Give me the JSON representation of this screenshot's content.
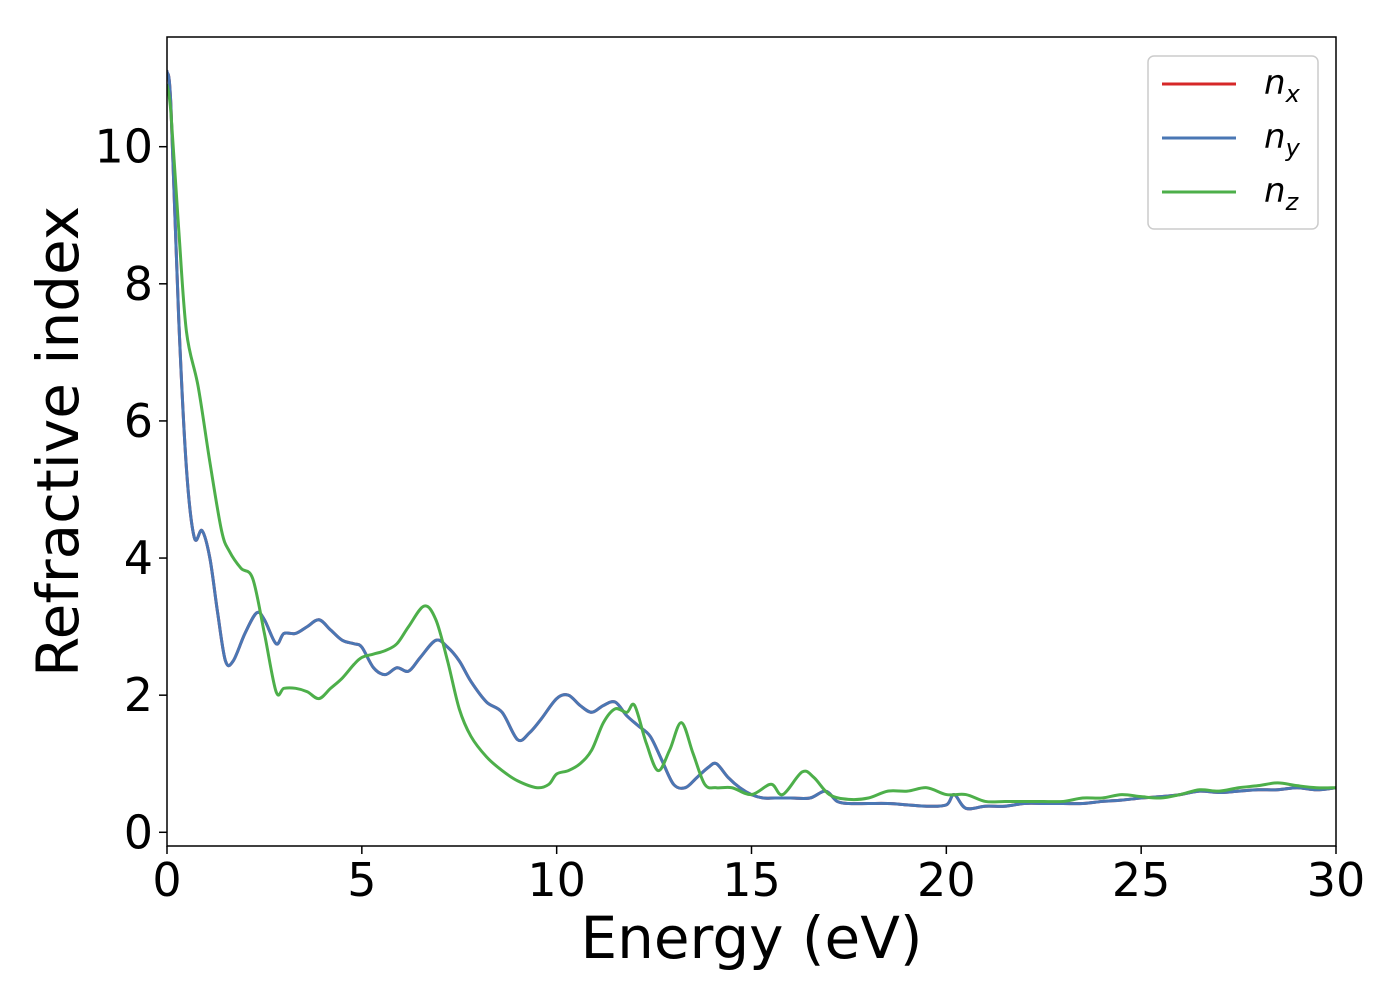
{
  "chart_data": {
    "type": "line",
    "xlabel": "Energy (eV)",
    "ylabel": "Refractive index",
    "xlim": [
      0,
      30
    ],
    "ylim": [
      -0.2,
      11.6
    ],
    "xticks": [
      0,
      5,
      10,
      15,
      20,
      25,
      30
    ],
    "yticks": [
      0,
      2,
      4,
      6,
      8,
      10
    ],
    "grid": false,
    "legend_position": "top-right",
    "series": [
      {
        "name": "n_x",
        "legend_base": "n",
        "legend_sub": "x",
        "color": "#d62728",
        "x": [
          0,
          0.1,
          0.3,
          0.5,
          0.7,
          0.9,
          1.1,
          1.3,
          1.5,
          1.7,
          2.0,
          2.3,
          2.5,
          2.8,
          3.0,
          3.3,
          3.6,
          3.9,
          4.2,
          4.5,
          4.8,
          5.0,
          5.3,
          5.6,
          5.9,
          6.2,
          6.5,
          6.9,
          7.2,
          7.5,
          7.8,
          8.2,
          8.6,
          9.0,
          9.3,
          9.6,
          10.0,
          10.3,
          10.6,
          10.9,
          11.2,
          11.5,
          11.8,
          12.1,
          12.4,
          12.7,
          13.0,
          13.3,
          13.6,
          13.9,
          14.1,
          14.4,
          14.7,
          15.0,
          15.3,
          15.6,
          16.0,
          16.5,
          16.9,
          17.2,
          17.5,
          18.0,
          18.5,
          19.0,
          19.5,
          20.0,
          20.2,
          20.5,
          21.0,
          21.5,
          22.0,
          22.5,
          23.0,
          23.5,
          24.0,
          24.5,
          25.0,
          25.5,
          26.0,
          26.5,
          27.0,
          27.5,
          28.0,
          28.5,
          29.0,
          29.5,
          30.0
        ],
        "y": [
          11.1,
          10.6,
          7.5,
          5.3,
          4.3,
          4.4,
          4.0,
          3.2,
          2.5,
          2.5,
          2.9,
          3.2,
          3.1,
          2.75,
          2.9,
          2.9,
          3.0,
          3.1,
          2.95,
          2.8,
          2.75,
          2.7,
          2.4,
          2.3,
          2.4,
          2.35,
          2.55,
          2.8,
          2.7,
          2.5,
          2.2,
          1.9,
          1.75,
          1.35,
          1.45,
          1.65,
          1.95,
          2.0,
          1.85,
          1.75,
          1.85,
          1.9,
          1.7,
          1.55,
          1.4,
          1.05,
          0.7,
          0.65,
          0.8,
          0.95,
          1.0,
          0.8,
          0.65,
          0.55,
          0.5,
          0.5,
          0.5,
          0.5,
          0.6,
          0.45,
          0.42,
          0.42,
          0.42,
          0.4,
          0.38,
          0.4,
          0.55,
          0.35,
          0.38,
          0.38,
          0.42,
          0.42,
          0.42,
          0.42,
          0.45,
          0.47,
          0.5,
          0.52,
          0.55,
          0.6,
          0.58,
          0.6,
          0.62,
          0.62,
          0.65,
          0.62,
          0.65
        ]
      },
      {
        "name": "n_y",
        "legend_base": "n",
        "legend_sub": "y",
        "color": "#4a77b4",
        "x": [
          0,
          0.1,
          0.3,
          0.5,
          0.7,
          0.9,
          1.1,
          1.3,
          1.5,
          1.7,
          2.0,
          2.3,
          2.5,
          2.8,
          3.0,
          3.3,
          3.6,
          3.9,
          4.2,
          4.5,
          4.8,
          5.0,
          5.3,
          5.6,
          5.9,
          6.2,
          6.5,
          6.9,
          7.2,
          7.5,
          7.8,
          8.2,
          8.6,
          9.0,
          9.3,
          9.6,
          10.0,
          10.3,
          10.6,
          10.9,
          11.2,
          11.5,
          11.8,
          12.1,
          12.4,
          12.7,
          13.0,
          13.3,
          13.6,
          13.9,
          14.1,
          14.4,
          14.7,
          15.0,
          15.3,
          15.6,
          16.0,
          16.5,
          16.9,
          17.2,
          17.5,
          18.0,
          18.5,
          19.0,
          19.5,
          20.0,
          20.2,
          20.5,
          21.0,
          21.5,
          22.0,
          22.5,
          23.0,
          23.5,
          24.0,
          24.5,
          25.0,
          25.5,
          26.0,
          26.5,
          27.0,
          27.5,
          28.0,
          28.5,
          29.0,
          29.5,
          30.0
        ],
        "y": [
          11.1,
          10.6,
          7.5,
          5.3,
          4.3,
          4.4,
          4.0,
          3.2,
          2.5,
          2.5,
          2.9,
          3.2,
          3.1,
          2.75,
          2.9,
          2.9,
          3.0,
          3.1,
          2.95,
          2.8,
          2.75,
          2.7,
          2.4,
          2.3,
          2.4,
          2.35,
          2.55,
          2.8,
          2.7,
          2.5,
          2.2,
          1.9,
          1.75,
          1.35,
          1.45,
          1.65,
          1.95,
          2.0,
          1.85,
          1.75,
          1.85,
          1.9,
          1.7,
          1.55,
          1.4,
          1.05,
          0.7,
          0.65,
          0.8,
          0.95,
          1.0,
          0.8,
          0.65,
          0.55,
          0.5,
          0.5,
          0.5,
          0.5,
          0.6,
          0.45,
          0.42,
          0.42,
          0.42,
          0.4,
          0.38,
          0.4,
          0.55,
          0.35,
          0.38,
          0.38,
          0.42,
          0.42,
          0.42,
          0.42,
          0.45,
          0.47,
          0.5,
          0.52,
          0.55,
          0.6,
          0.58,
          0.6,
          0.62,
          0.62,
          0.65,
          0.62,
          0.65
        ]
      },
      {
        "name": "n_z",
        "legend_base": "n",
        "legend_sub": "z",
        "color": "#4daf4a",
        "x": [
          0,
          0.1,
          0.3,
          0.5,
          0.8,
          1.1,
          1.4,
          1.6,
          1.9,
          2.2,
          2.5,
          2.8,
          3.0,
          3.3,
          3.6,
          3.9,
          4.2,
          4.5,
          4.8,
          5.0,
          5.3,
          5.6,
          5.9,
          6.2,
          6.6,
          6.9,
          7.2,
          7.5,
          7.8,
          8.2,
          8.6,
          9.0,
          9.5,
          9.8,
          10.0,
          10.3,
          10.6,
          10.9,
          11.2,
          11.5,
          11.8,
          12.0,
          12.3,
          12.6,
          12.9,
          13.2,
          13.5,
          13.8,
          14.1,
          14.5,
          15.0,
          15.5,
          15.8,
          16.3,
          16.6,
          17.0,
          17.5,
          18.0,
          18.5,
          19.0,
          19.5,
          20.0,
          20.5,
          21.0,
          21.5,
          22.0,
          22.5,
          23.0,
          23.5,
          24.0,
          24.5,
          25.0,
          25.5,
          26.0,
          26.5,
          27.0,
          27.5,
          28.0,
          28.5,
          29.0,
          29.5,
          30.0
        ],
        "y": [
          10.9,
          10.5,
          8.8,
          7.3,
          6.5,
          5.4,
          4.4,
          4.1,
          3.85,
          3.7,
          2.9,
          2.05,
          2.1,
          2.1,
          2.05,
          1.95,
          2.1,
          2.25,
          2.45,
          2.55,
          2.6,
          2.65,
          2.75,
          3.0,
          3.3,
          3.1,
          2.5,
          1.8,
          1.4,
          1.1,
          0.9,
          0.75,
          0.65,
          0.7,
          0.85,
          0.9,
          1.0,
          1.2,
          1.6,
          1.8,
          1.75,
          1.85,
          1.3,
          0.9,
          1.2,
          1.6,
          1.15,
          0.7,
          0.65,
          0.65,
          0.55,
          0.7,
          0.55,
          0.88,
          0.8,
          0.55,
          0.48,
          0.5,
          0.6,
          0.6,
          0.65,
          0.55,
          0.55,
          0.45,
          0.45,
          0.45,
          0.45,
          0.45,
          0.5,
          0.5,
          0.55,
          0.52,
          0.5,
          0.55,
          0.62,
          0.6,
          0.65,
          0.68,
          0.72,
          0.68,
          0.65,
          0.65
        ]
      }
    ]
  }
}
